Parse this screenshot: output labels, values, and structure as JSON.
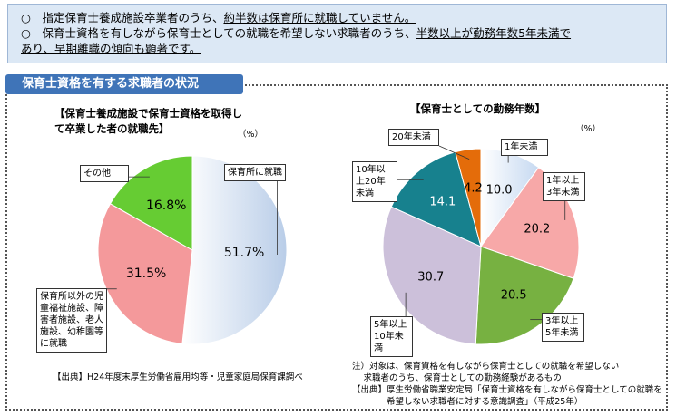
{
  "summary": {
    "bullets": [
      {
        "marker": "○",
        "lines": [
          [
            "指定保育士養成施設卒業者のうち、",
            "約半数は保育所に就職していません。"
          ]
        ]
      },
      {
        "marker": "○",
        "lines": [
          [
            "保育士資格を有しながら保育士としての就職を希望しない求職者のうち、",
            "半数以上が勤務年数5年未満で"
          ],
          [
            "あり、早期離職の傾向も顕著です。"
          ]
        ]
      }
    ]
  },
  "section_title": "保育士資格を有する求職者の状況",
  "chart_data": [
    {
      "type": "pie",
      "title": "【保育士養成施設で保育士資格を取得して卒業した者の就職先】",
      "unit": "（%）",
      "categories": [
        "保育所に就職",
        "保育所以外の児童福祉施設、障害者施設、老人施設、幼稚園等に就職",
        "その他"
      ],
      "values": [
        51.7,
        31.5,
        16.8
      ],
      "value_labels": [
        "51.7%",
        "31.5%",
        "16.8%"
      ],
      "colors": [
        "#b9cde8",
        "#f4999b",
        "#66cc33"
      ],
      "source": "【出典】H24年度末厚生労働省雇用均等・児童家庭局保育課調べ"
    },
    {
      "type": "pie",
      "title": "【保育士としての勤務年数】",
      "unit": "（%）",
      "categories": [
        "1年未満",
        "1年以上3年未満",
        "3年以上5年未満",
        "5年以上10年未満",
        "10年以上20年未満",
        "20年未満"
      ],
      "values": [
        10.0,
        20.2,
        20.5,
        30.7,
        14.1,
        4.2
      ],
      "value_labels": [
        "10.0",
        "20.2",
        "20.5",
        "30.7",
        "14.1",
        "4.2"
      ],
      "colors": [
        "#c6d9f1",
        "#f7a8a8",
        "#77b141",
        "#ccc0da",
        "#17818e",
        "#e46c0a"
      ],
      "notes": [
        "注）対象は、保育資格を有しながら保育士としての就職を希望しない",
        "　 求職者のうち、保育士としての勤務経験があるもの",
        "【出典】厚生労働省職業安定局「保育士資格を有しながら保育士としての就職を",
        "　　　　希望しない求職者に対する意識調査」（平成25年）"
      ]
    }
  ]
}
